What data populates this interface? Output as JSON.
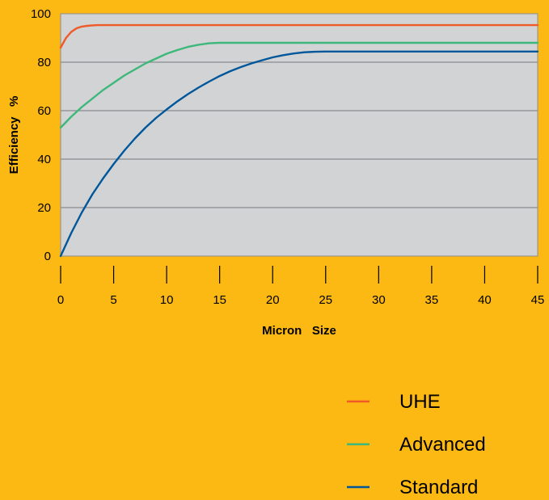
{
  "colors": {
    "background": "#FDB913",
    "plot_area": "#D1D3D4",
    "grid": "#8A8C8F"
  },
  "chart_data": {
    "type": "line",
    "xlabel": "Micron   Size",
    "ylabel": "Efficiency   %",
    "xlim": [
      0,
      45
    ],
    "ylim": [
      0,
      100
    ],
    "xticks": [
      0,
      5,
      10,
      15,
      20,
      25,
      30,
      35,
      40,
      45
    ],
    "yticks": [
      0,
      20,
      40,
      60,
      80,
      100
    ],
    "grid": true,
    "legend_position": "bottom-right",
    "series": [
      {
        "name": "UHE",
        "color": "#F05A28",
        "x": [
          0,
          0.5,
          1,
          1.5,
          2,
          2.5,
          3,
          3.5,
          4,
          5,
          10,
          20,
          30,
          45
        ],
        "y": [
          86,
          90,
          92.5,
          94,
          94.7,
          95,
          95.2,
          95.3,
          95.3,
          95.3,
          95.3,
          95.3,
          95.3,
          95.3
        ]
      },
      {
        "name": "Advanced",
        "color": "#3DB87A",
        "x": [
          0,
          1,
          2,
          3,
          4,
          5,
          6,
          7,
          8,
          9,
          10,
          11,
          12,
          13,
          14,
          15,
          16,
          20,
          30,
          45
        ],
        "y": [
          53,
          57.5,
          61.5,
          65,
          68.5,
          71.5,
          74.5,
          77,
          79.5,
          81.5,
          83.5,
          85,
          86.3,
          87.2,
          87.8,
          88,
          88,
          88,
          88,
          88
        ]
      },
      {
        "name": "Standard",
        "color": "#00579B",
        "x": [
          0,
          1,
          2,
          3,
          4,
          5,
          6,
          7,
          8,
          9,
          10,
          11,
          12,
          13,
          14,
          15,
          16,
          17,
          18,
          19,
          20,
          21,
          22,
          23,
          24,
          25,
          30,
          45
        ],
        "y": [
          0,
          9.5,
          18,
          25.5,
          32,
          38,
          43.5,
          48.5,
          53,
          57,
          60.5,
          63.8,
          66.8,
          69.5,
          72,
          74.3,
          76.3,
          78,
          79.5,
          80.8,
          82,
          82.9,
          83.6,
          84.1,
          84.3,
          84.4,
          84.4,
          84.4
        ]
      }
    ]
  }
}
